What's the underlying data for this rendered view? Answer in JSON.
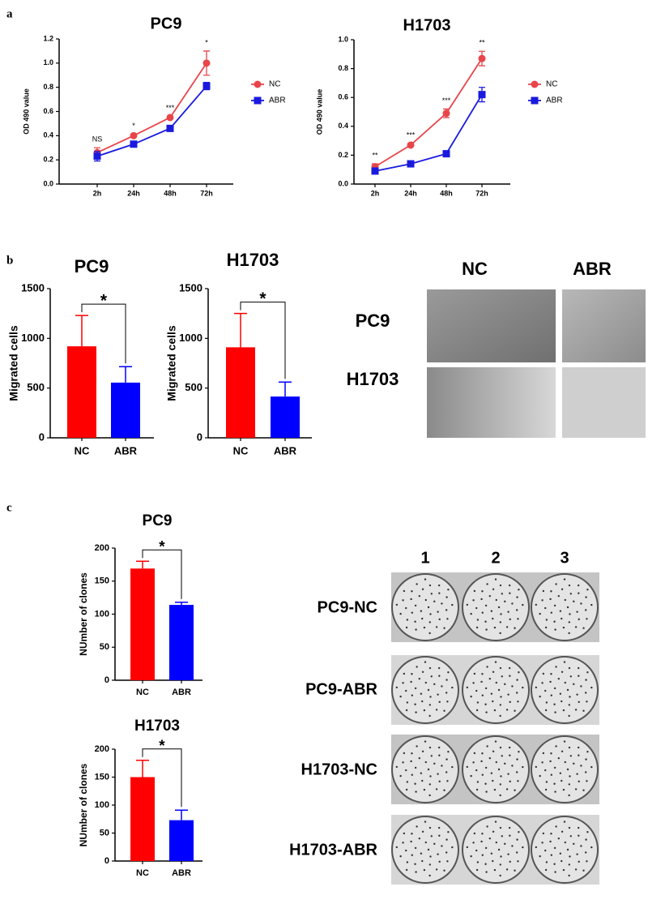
{
  "chart_data": [
    {
      "type": "line",
      "title": "PC9",
      "ylabel": "OD 490 value",
      "categories": [
        "2h",
        "24h",
        "48h",
        "72h"
      ],
      "series": [
        {
          "name": "NC",
          "color": "#e8454b",
          "marker": "circle",
          "values": [
            0.26,
            0.4,
            0.55,
            1.0
          ],
          "errors": [
            0.04,
            0.01,
            0.01,
            0.1
          ]
        },
        {
          "name": "ABR",
          "color": "#1a1adf",
          "marker": "square",
          "values": [
            0.23,
            0.33,
            0.46,
            0.81
          ],
          "errors": [
            0.04,
            0.02,
            0.01,
            0.03
          ]
        }
      ],
      "annotations": [
        "NS",
        "*",
        "***",
        "*"
      ],
      "ylim": [
        0,
        1.2
      ],
      "yticks": [
        {
          "value": 0,
          "label": "0.0"
        },
        0.2,
        0.4,
        0.6,
        0.8,
        {
          "value": 1,
          "label": "1.0"
        },
        1.2
      ],
      "legend": "right"
    },
    {
      "type": "line",
      "title": "H1703",
      "ylabel": "OD 490 value",
      "categories": [
        "2h",
        "24h",
        "48h",
        "72h"
      ],
      "series": [
        {
          "name": "NC",
          "color": "#e8454b",
          "marker": "circle",
          "values": [
            0.12,
            0.27,
            0.49,
            0.87
          ],
          "errors": [
            0.02,
            0.01,
            0.03,
            0.05
          ]
        },
        {
          "name": "ABR",
          "color": "#1a1adf",
          "marker": "square",
          "values": [
            0.09,
            0.14,
            0.21,
            0.62
          ],
          "errors": [
            0.01,
            0.01,
            0.01,
            0.05
          ]
        }
      ],
      "annotations": [
        "**",
        "***",
        "***",
        "**"
      ],
      "ylim": [
        0,
        1.0
      ],
      "yticks": [
        {
          "value": 0,
          "label": "0.0"
        },
        0.2,
        0.4,
        0.6,
        0.8,
        {
          "value": 1,
          "label": "1.0"
        }
      ],
      "legend": "right"
    },
    {
      "type": "bar",
      "title": "PC9",
      "ylabel": "Migrated cells",
      "categories": [
        "NC",
        "ABR"
      ],
      "values": [
        920,
        555
      ],
      "errors": [
        310,
        160
      ],
      "colors": [
        "#ff0000",
        "#0000ff"
      ],
      "ylim": [
        0,
        1500
      ],
      "yticks": [
        0,
        500,
        1000,
        1500
      ],
      "significance": "*"
    },
    {
      "type": "bar",
      "title": "H1703",
      "ylabel": "Migrated cells",
      "categories": [
        "NC",
        "ABR"
      ],
      "values": [
        910,
        415
      ],
      "errors": [
        340,
        145
      ],
      "colors": [
        "#ff0000",
        "#0000ff"
      ],
      "ylim": [
        0,
        1500
      ],
      "yticks": [
        0,
        500,
        1000,
        1500
      ],
      "significance": "*"
    },
    {
      "type": "bar",
      "title": "PC9",
      "ylabel": "NUmber of clones",
      "categories": [
        "NC",
        "ABR"
      ],
      "values": [
        169,
        114
      ],
      "errors": [
        11,
        4
      ],
      "colors": [
        "#ff0000",
        "#0000ff"
      ],
      "ylim": [
        0,
        200
      ],
      "yticks": [
        0,
        50,
        100,
        150,
        200
      ],
      "significance": "*"
    },
    {
      "type": "bar",
      "title": "H1703",
      "ylabel": "NUmber of clones",
      "categories": [
        "NC",
        "ABR"
      ],
      "values": [
        150,
        73
      ],
      "errors": [
        30,
        18
      ],
      "colors": [
        "#ff0000",
        "#0000ff"
      ],
      "ylim": [
        0,
        200
      ],
      "yticks": [
        0,
        50,
        100,
        150,
        200
      ],
      "significance": "*"
    }
  ],
  "figure": {
    "panel_labels": [
      "a",
      "b",
      "c"
    ],
    "migration_images": {
      "columns": [
        "NC",
        "ABR"
      ],
      "rows": [
        "PC9",
        "H1703"
      ]
    },
    "colony_images": {
      "columns": [
        "1",
        "2",
        "3"
      ],
      "rows": [
        "PC9-NC",
        "PC9-ABR",
        "H1703-NC",
        "H1703-ABR"
      ]
    }
  }
}
